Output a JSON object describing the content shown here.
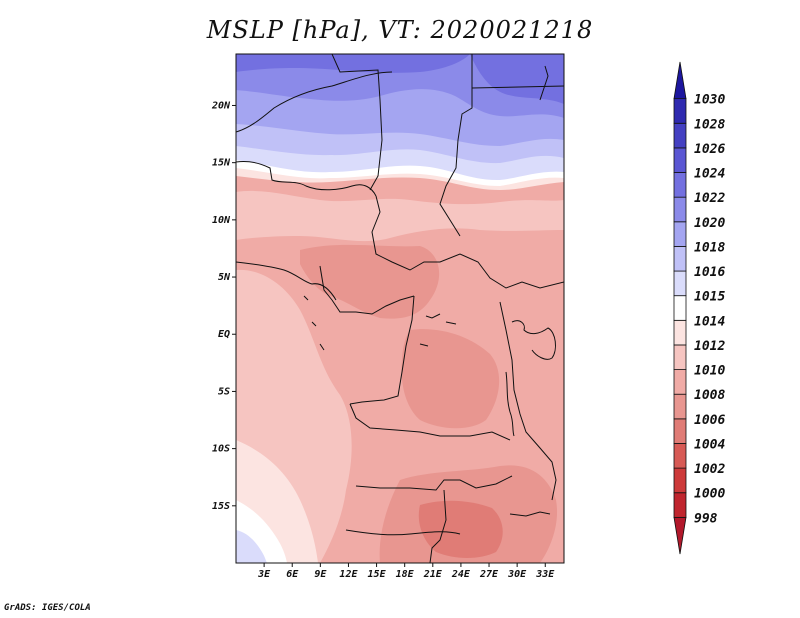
{
  "title": "MSLP [hPa], VT: 2020021218",
  "credit": "GrADS: IGES/COLA",
  "chart_data": {
    "type": "heatmap",
    "title": "MSLP [hPa], VT: 2020021218",
    "variable": "Mean sea level pressure",
    "units": "hPa",
    "valid_time": "2020021218",
    "x_axis": {
      "range_deg": [
        0,
        35
      ],
      "ticks": [
        {
          "value": 3,
          "label": "3E"
        },
        {
          "value": 6,
          "label": "6E"
        },
        {
          "value": 9,
          "label": "9E"
        },
        {
          "value": 12,
          "label": "12E"
        },
        {
          "value": 15,
          "label": "15E"
        },
        {
          "value": 18,
          "label": "18E"
        },
        {
          "value": 21,
          "label": "21E"
        },
        {
          "value": 24,
          "label": "24E"
        },
        {
          "value": 27,
          "label": "27E"
        },
        {
          "value": 30,
          "label": "30E"
        },
        {
          "value": 33,
          "label": "33E"
        }
      ]
    },
    "y_axis": {
      "range_deg": [
        -20,
        24.5
      ],
      "ticks": [
        {
          "value": 20,
          "label": "20N"
        },
        {
          "value": 15,
          "label": "15N"
        },
        {
          "value": 10,
          "label": "10N"
        },
        {
          "value": 5,
          "label": "5N"
        },
        {
          "value": 0,
          "label": "EQ"
        },
        {
          "value": -5,
          "label": "5S"
        },
        {
          "value": -10,
          "label": "10S"
        },
        {
          "value": -15,
          "label": "15S"
        }
      ]
    },
    "colorbar": {
      "levels": [
        998,
        1000,
        1002,
        1004,
        1006,
        1008,
        1010,
        1012,
        1014,
        1015,
        1016,
        1018,
        1020,
        1022,
        1024,
        1026,
        1028,
        1030
      ],
      "labels": [
        "998",
        "1000",
        "1002",
        "1004",
        "1006",
        "1008",
        "1010",
        "1012",
        "1014",
        "1015",
        "1016",
        "1018",
        "1020",
        "1022",
        "1024",
        "1026",
        "1028",
        "1030"
      ],
      "colors": [
        "#b2182b",
        "#c0252e",
        "#cd3a3a",
        "#d75a55",
        "#e07c76",
        "#e89690",
        "#f0aba6",
        "#f6c5c1",
        "#fce4e1",
        "#ffffff",
        "#dadcfb",
        "#c0c1f7",
        "#a4a5f1",
        "#8b8ae9",
        "#7370e0",
        "#5a56d3",
        "#4440c2",
        "#2f2ab0",
        "#1c169e"
      ],
      "extend": "both"
    }
  }
}
